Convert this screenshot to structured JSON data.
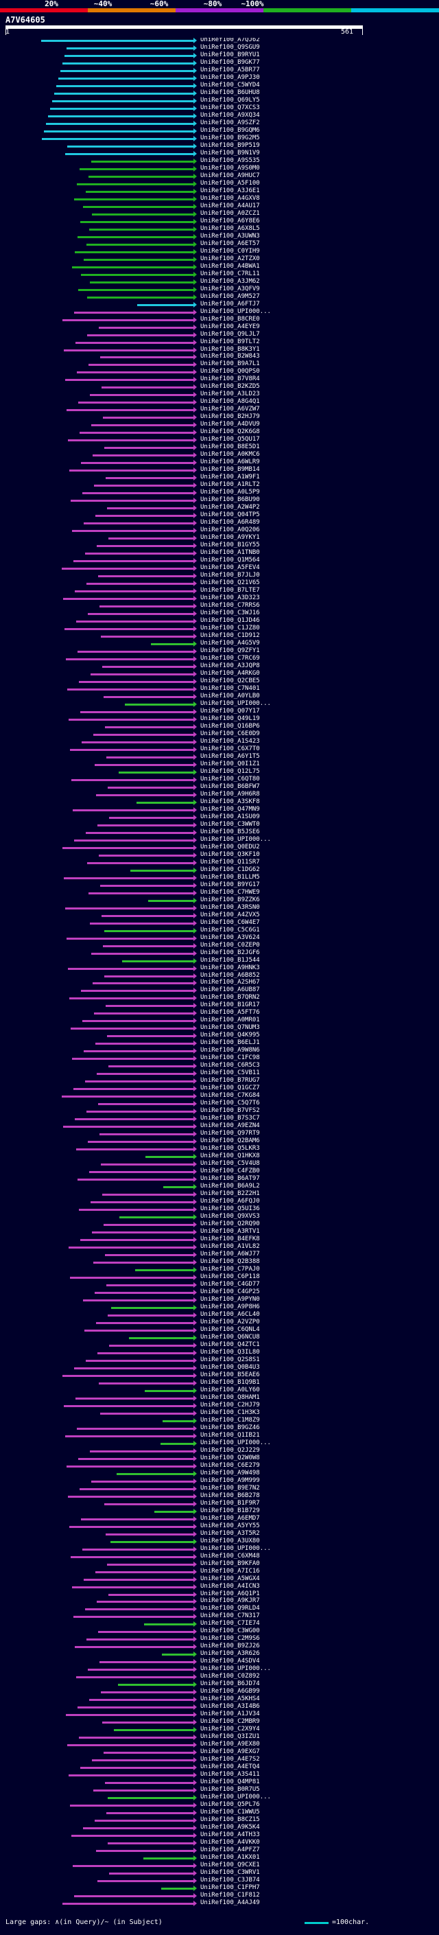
{
  "legend": {
    "labels": [
      "20%",
      "~40%",
      "~60%",
      "~80%",
      "~100%"
    ],
    "colors": [
      "#e6001a",
      "#e07800",
      "#a020d0",
      "#20b020",
      "#00c0e0"
    ]
  },
  "query": {
    "id": "A7V64605",
    "start": "1",
    "end": "561"
  },
  "hits": [
    "UniRef100_A7QJ62",
    "UniRef100_Q9SGU9",
    "UniRef100_B9RYU1",
    "UniRef100_B9GK77",
    "UniRef100_A5BR77",
    "UniRef100_A9PJ30",
    "UniRef100_C5WYD4",
    "UniRef100_B6UHU8",
    "UniRef100_Q69LY5",
    "UniRef100_Q7XCS3",
    "UniRef100_A9XQ34",
    "UniRef100_A9SZF2",
    "UniRef100_B9GQM6",
    "UniRef100_B9G2M5",
    "UniRef100_B9P519",
    "UniRef100_B9N1V9",
    "UniRef100_A9S535",
    "UniRef100_A9S0M0",
    "UniRef100_A9HUC7",
    "UniRef100_A5F100",
    "UniRef100_A3J6E1",
    "UniRef100_A4GXV8",
    "UniRef100_A4AU17",
    "UniRef100_A0ZCZ1",
    "UniRef100_A6Y8E6",
    "UniRef100_A6X8L5",
    "UniRef100_A3UWN3",
    "UniRef100_A6ET57",
    "UniRef100_C0YIH9",
    "UniRef100_A2TZX0",
    "UniRef100_A4BWA1",
    "UniRef100_C7RL11",
    "UniRef100_A3JM62",
    "UniRef100_A3QFV9",
    "UniRef100_A9M527",
    "UniRef100_A6FTJ7",
    "UniRef100_UPI000...",
    "UniRef100_B8CRE0",
    "UniRef100_A4EYE9",
    "UniRef100_Q9LJL7",
    "UniRef100_B9TLT2",
    "UniRef100_B8K3Y1",
    "UniRef100_B2W843",
    "UniRef100_B9A7L1",
    "UniRef100_Q0QPS0",
    "UniRef100_B7V8R4",
    "UniRef100_B2KZD5",
    "UniRef100_A3LD23",
    "UniRef100_A8G4Q1",
    "UniRef100_A6VZW7",
    "UniRef100_B2HJ79",
    "UniRef100_A4DVU9",
    "UniRef100_Q2K6G8",
    "UniRef100_Q5QU17",
    "UniRef100_B8E5D1",
    "UniRef100_A0KMC6",
    "UniRef100_A6WLR9",
    "UniRef100_B9MB14",
    "UniRef100_A1W9F1",
    "UniRef100_A1RLT2",
    "UniRef100_A0L5P9",
    "UniRef100_B6BU90",
    "UniRef100_A2W4P2",
    "UniRef100_Q04TP5",
    "UniRef100_A6R489",
    "UniRef100_A0Q206",
    "UniRef100_A9YKY1",
    "UniRef100_B1GY55",
    "UniRef100_A1TNB0",
    "UniRef100_Q1M564",
    "UniRef100_A5FEV4",
    "UniRef100_B7JLJ0",
    "UniRef100_Q21V65",
    "UniRef100_B7LTE7",
    "UniRef100_A3D323",
    "UniRef100_C7RRS6",
    "UniRef100_C3WJ16",
    "UniRef100_Q1JD46",
    "UniRef100_C1JZ80",
    "UniRef100_C1D912",
    "UniRef100_A4G5V9",
    "UniRef100_Q9ZFY1",
    "UniRef100_C7RC69",
    "UniRef100_A3JQP8",
    "UniRef100_A4RKG0",
    "UniRef100_Q2CBE5",
    "UniRef100_C7N401",
    "UniRef100_A0YLB0",
    "UniRef100_UPI000...",
    "UniRef100_Q07Y17",
    "UniRef100_Q49L19",
    "UniRef100_Q16BP6",
    "UniRef100_C6E0D9",
    "UniRef100_A1S423",
    "UniRef100_C6X7T0",
    "UniRef100_A6Y1T5",
    "UniRef100_Q0I1Z1",
    "UniRef100_Q12L75",
    "UniRef100_C6QT80",
    "UniRef100_B6BFW7",
    "UniRef100_A9H6R8",
    "UniRef100_A3SKF8",
    "UniRef100_Q47MN9",
    "UniRef100_A1SU09",
    "UniRef100_C3WWT0",
    "UniRef100_B5JSE6",
    "UniRef100_UPI000...",
    "UniRef100_Q0EDU2",
    "UniRef100_Q3KF10",
    "UniRef100_Q11SR7",
    "UniRef100_C1DG62",
    "UniRef100_B1LLM5",
    "UniRef100_B9YG17",
    "UniRef100_C7HWE9",
    "UniRef100_B9ZZK6",
    "UniRef100_A3RSN0",
    "UniRef100_A4ZVX5",
    "UniRef100_C6W4E7",
    "UniRef100_C5C6G1",
    "UniRef100_A3V624",
    "UniRef100_C0ZEP0",
    "UniRef100_B2JGF6",
    "UniRef100_B1J544",
    "UniRef100_A9HNK3",
    "UniRef100_A6B852",
    "UniRef100_A2SH67",
    "UniRef100_A6UB87",
    "UniRef100_B7QRN2",
    "UniRef100_B1GR17",
    "UniRef100_A5FT76",
    "UniRef100_A0MR01",
    "UniRef100_Q7NUM3",
    "UniRef100_Q4K995",
    "UniRef100_B6ELJ1",
    "UniRef100_A9W8N6",
    "UniRef100_C1FC98",
    "UniRef100_C6R5C3",
    "UniRef100_C5VB11",
    "UniRef100_B7RUG7",
    "UniRef100_Q1GCZ7",
    "UniRef100_C7KG84",
    "UniRef100_C5Q7T6",
    "UniRef100_B7VFS2",
    "UniRef100_B7S3C7",
    "UniRef100_A9EZN4",
    "UniRef100_Q97RT9",
    "UniRef100_Q2BAM6",
    "UniRef100_Q5LKR3",
    "UniRef100_Q1HKX8",
    "UniRef100_C5V4U8",
    "UniRef100_C4FZB0",
    "UniRef100_B6AT97",
    "UniRef100_B6A9L2",
    "UniRef100_B2Z2H1",
    "UniRef100_A6FQJ0",
    "UniRef100_Q5UI36",
    "UniRef100_Q9XVS3",
    "UniRef100_Q2RQ90",
    "UniRef100_A3RTV1",
    "UniRef100_B4EFK8",
    "UniRef100_A1VL82",
    "UniRef100_A6WJ77",
    "UniRef100_Q2B388",
    "UniRef100_C7PAJ0",
    "UniRef100_C6P118",
    "UniRef100_C4GD77",
    "UniRef100_C4GP25",
    "UniRef100_A9PYN0",
    "UniRef100_A9P8H6",
    "UniRef100_A6CL40",
    "UniRef100_A2VZP0",
    "UniRef100_C6QNL4",
    "UniRef100_Q6NCU8",
    "UniRef100_Q4ZTC1",
    "UniRef100_Q3IL80",
    "UniRef100_Q2S8S1",
    "UniRef100_Q0B4U3",
    "UniRef100_B5EAE6",
    "UniRef100_B1Q9B1",
    "UniRef100_A0LY60",
    "UniRef100_Q8HAM1",
    "UniRef100_C2HJ79",
    "UniRef100_C1H3K3",
    "UniRef100_C1M8Z9",
    "UniRef100_B9GZ46",
    "UniRef100_Q1IB21",
    "UniRef100_UPI000...",
    "UniRef100_Q2J229",
    "UniRef100_Q2W0W8",
    "UniRef100_C6E279",
    "UniRef100_A9W498",
    "UniRef100_A9M999",
    "UniRef100_B9E7N2",
    "UniRef100_B6B278",
    "UniRef100_B1F9R7",
    "UniRef100_B1B729",
    "UniRef100_A6EMD7",
    "UniRef100_A5YY55",
    "UniRef100_A3T5R2",
    "UniRef100_A3UX80",
    "UniRef100_UPI000...",
    "UniRef100_C6XM48",
    "UniRef100_B9KFA0",
    "UniRef100_A7IC16",
    "UniRef100_A5WGX4",
    "UniRef100_A4ICN3",
    "UniRef100_A6Q1P1",
    "UniRef100_A9KJR7",
    "UniRef100_Q9RLD4",
    "UniRef100_C7N317",
    "UniRef100_C7IE74",
    "UniRef100_C3WG00",
    "UniRef100_C2M9S6",
    "UniRef100_B9ZJ26",
    "UniRef100_A3R626",
    "UniRef100_A4SDV4",
    "UniRef100_UPI000...",
    "UniRef100_C0Z892",
    "UniRef100_B6JD74",
    "UniRef100_A6GB99",
    "UniRef100_A5KHS4",
    "UniRef100_A3I4B6",
    "UniRef100_A1JV34",
    "UniRef100_C2MBR9",
    "UniRef100_C2X9Y4",
    "UniRef100_Q3IZU1",
    "UniRef100_A9EX80",
    "UniRef100_A9EXG7",
    "UniRef100_A4E7S2",
    "UniRef100_A4ETQ4",
    "UniRef100_A3S411",
    "UniRef100_Q4MP81",
    "UniRef100_B0R7U5",
    "UniRef100_UPI000...",
    "UniRef100_Q5PL76",
    "UniRef100_C1WWU5",
    "UniRef100_B8CZ15",
    "UniRef100_A9K5K4",
    "UniRef100_A4TH33",
    "UniRef100_A4VKK0",
    "UniRef100_A4PFZ7",
    "UniRef100_A1KX01",
    "UniRef100_Q9CXE1",
    "UniRef100_C3WRV1",
    "UniRef100_C3JB74",
    "UniRef100_C1FPH7",
    "UniRef100_C1F812",
    "UniRef100_A4AJ49"
  ],
  "footer": {
    "gap_note": "Large gaps: ∧(in Query)/~ (in Subject)",
    "scale_note": "=100char."
  }
}
